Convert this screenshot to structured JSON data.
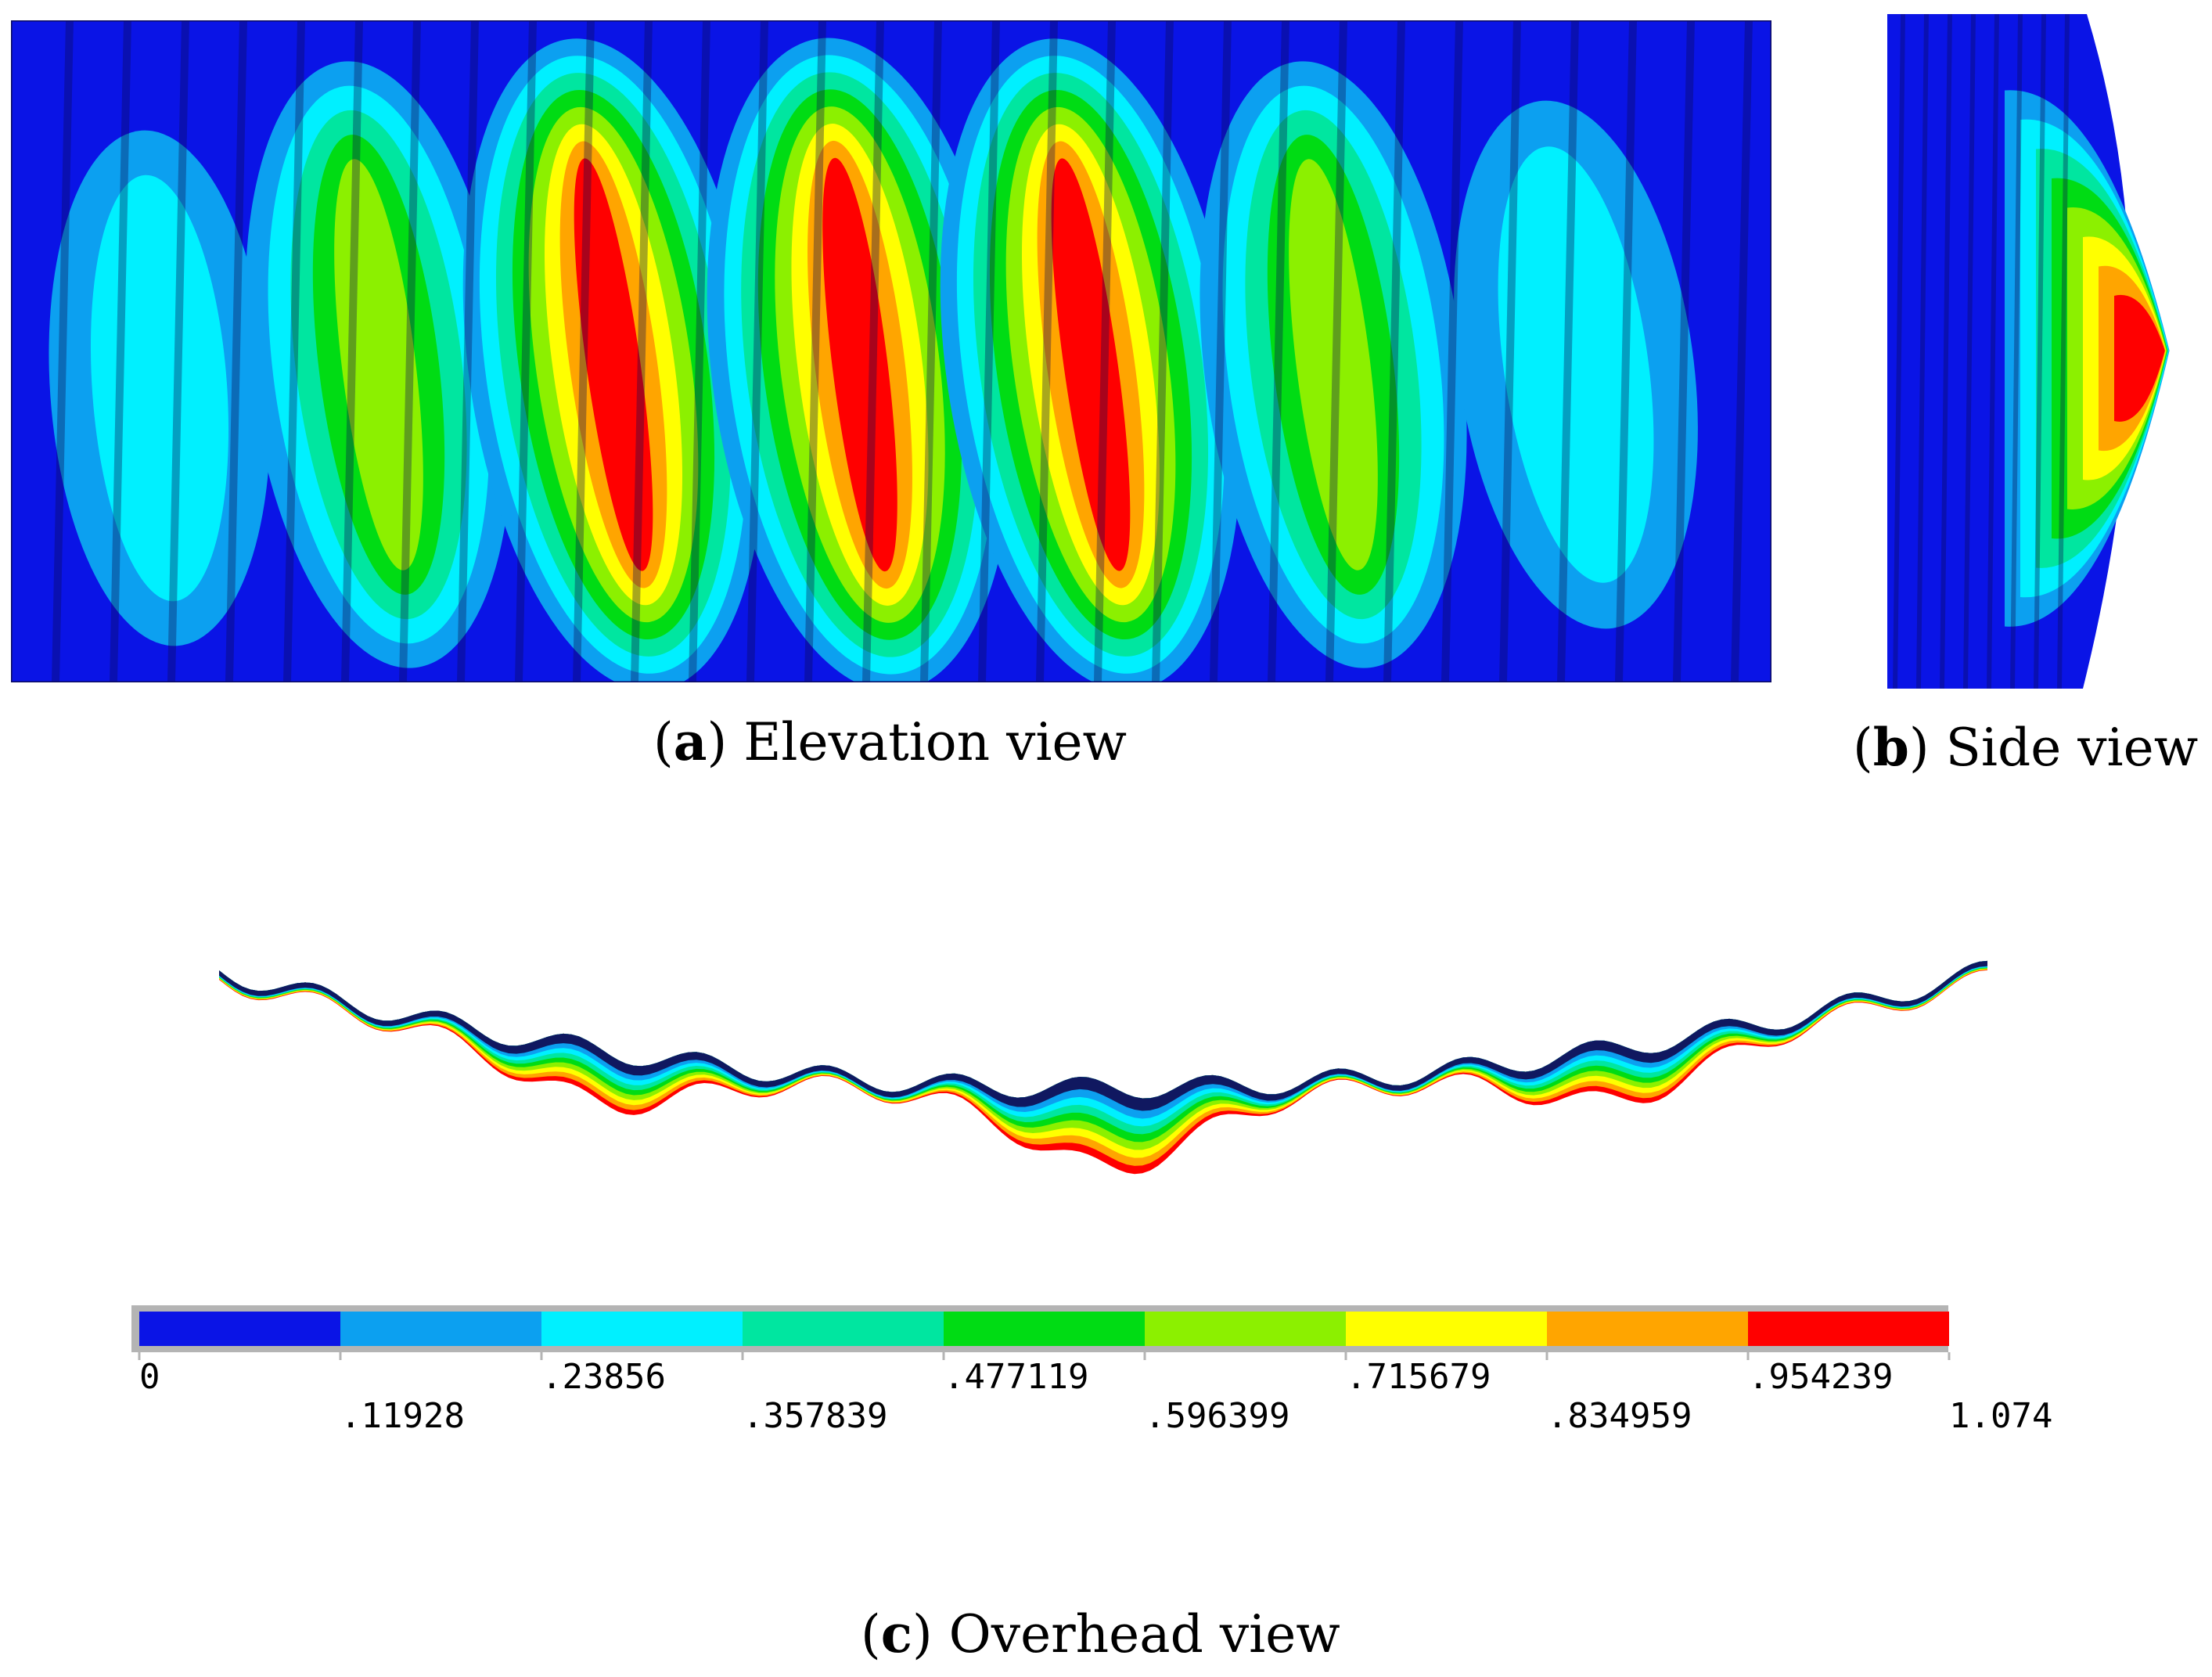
{
  "figure": {
    "panels": [
      {
        "letter": "a",
        "title": "Elevation view"
      },
      {
        "letter": "b",
        "title": "Side view"
      },
      {
        "letter": "c",
        "title": "Overhead view"
      }
    ]
  },
  "colorbar": {
    "colors": [
      "#0a14e6",
      "#0ca0f0",
      "#00f0ff",
      "#00e6a0",
      "#00dc14",
      "#8cf000",
      "#ffff00",
      "#ffa500",
      "#ff0000"
    ],
    "ticks": [
      "0",
      ".11928",
      ".23856",
      ".357839",
      ".477119",
      ".596399",
      ".715679",
      ".834959",
      ".954239",
      "1.074"
    ],
    "min": 0,
    "max": 1.074
  }
}
